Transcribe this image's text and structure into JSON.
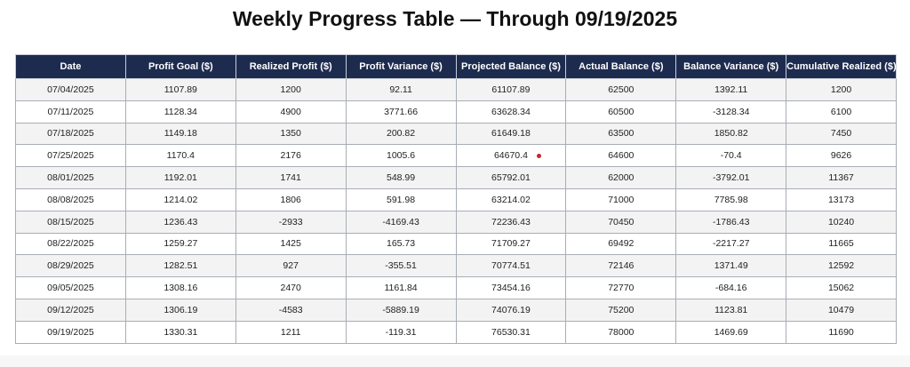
{
  "title": "Weekly Progress Table — Through 09/19/2025",
  "colors": {
    "header_background": "#1d2b4f",
    "header_text": "#ffffff",
    "row_alt": "#f3f3f3",
    "marker_dot": "#c0282d"
  },
  "table": {
    "columns": [
      "Date",
      "Profit Goal ($)",
      "Realized Profit ($)",
      "Profit Variance ($)",
      "Projected Balance ($)",
      "Actual Balance ($)",
      "Balance Variance ($)",
      "Cumulative Realized ($)"
    ],
    "rows": [
      [
        "07/04/2025",
        "1107.89",
        "1200",
        "92.11",
        "61107.89",
        "62500",
        "1392.11",
        "1200"
      ],
      [
        "07/11/2025",
        "1128.34",
        "4900",
        "3771.66",
        "63628.34",
        "60500",
        "-3128.34",
        "6100"
      ],
      [
        "07/18/2025",
        "1149.18",
        "1350",
        "200.82",
        "61649.18",
        "63500",
        "1850.82",
        "7450"
      ],
      [
        "07/25/2025",
        "1170.4",
        "2176",
        "1005.6",
        "64670.4",
        "64600",
        "-70.4",
        "9626"
      ],
      [
        "08/01/2025",
        "1192.01",
        "1741",
        "548.99",
        "65792.01",
        "62000",
        "-3792.01",
        "11367"
      ],
      [
        "08/08/2025",
        "1214.02",
        "1806",
        "591.98",
        "63214.02",
        "71000",
        "7785.98",
        "13173"
      ],
      [
        "08/15/2025",
        "1236.43",
        "-2933",
        "-4169.43",
        "72236.43",
        "70450",
        "-1786.43",
        "10240"
      ],
      [
        "08/22/2025",
        "1259.27",
        "1425",
        "165.73",
        "71709.27",
        "69492",
        "-2217.27",
        "11665"
      ],
      [
        "08/29/2025",
        "1282.51",
        "927",
        "-355.51",
        "70774.51",
        "72146",
        "1371.49",
        "12592"
      ],
      [
        "09/05/2025",
        "1308.16",
        "2470",
        "1161.84",
        "73454.16",
        "72770",
        "-684.16",
        "15062"
      ],
      [
        "09/12/2025",
        "1306.19",
        "-4583",
        "-5889.19",
        "74076.19",
        "75200",
        "1123.81",
        "10479"
      ],
      [
        "09/19/2025",
        "1330.31",
        "1211",
        "-119.31",
        "76530.31",
        "78000",
        "1469.69",
        "11690"
      ]
    ]
  }
}
